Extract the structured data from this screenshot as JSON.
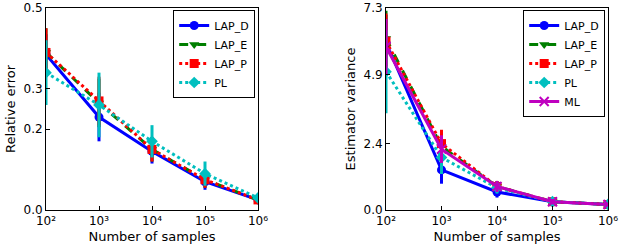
{
  "chart_data": [
    {
      "type": "line",
      "x_label": "Number of samples",
      "y_label": "Relative error",
      "x": [
        100,
        1000,
        10000,
        100000,
        1000000
      ],
      "log": "x",
      "xlim": [
        100,
        1000000
      ],
      "xticks": [
        {
          "value": 100,
          "label": "10²"
        },
        {
          "value": 1000,
          "label": "10³"
        },
        {
          "value": 10000,
          "label": "10⁴"
        },
        {
          "value": 100000,
          "label": "10⁵"
        },
        {
          "value": 1000000,
          "label": "10⁶"
        }
      ],
      "ylim": [
        0,
        0.5
      ],
      "yticks": [
        {
          "value": 0,
          "label": "0.0"
        },
        {
          "value": 0.2,
          "label": "0.2"
        },
        {
          "value": 0.3,
          "label": "0.3"
        },
        {
          "value": 0.5,
          "label": "0.5"
        }
      ],
      "grid": false,
      "legend": "upper right",
      "series": [
        {
          "name": "LAP_D",
          "color": "#0000ff",
          "marker": "circle",
          "line_style": "solid",
          "values": [
            0.385,
            0.23,
            0.145,
            0.07,
            0.025
          ],
          "error": [
            0.05,
            0.06,
            0.03,
            0.02,
            0.01
          ]
        },
        {
          "name": "LAP_E",
          "color": "#007f00",
          "marker": "triangle-down",
          "line_style": "dashed",
          "values": [
            0.39,
            0.265,
            0.15,
            0.075,
            0.025
          ],
          "error": [
            0.06,
            0.06,
            0.03,
            0.02,
            0.01
          ]
        },
        {
          "name": "LAP_P",
          "color": "#ff0000",
          "marker": "square",
          "line_style": "dotted",
          "values": [
            0.39,
            0.27,
            0.15,
            0.075,
            0.025
          ],
          "error": [
            0.06,
            0.06,
            0.03,
            0.02,
            0.01
          ]
        },
        {
          "name": "PL",
          "color": "#00bfbf",
          "marker": "diamond",
          "line_style": "dotted",
          "values": [
            0.34,
            0.26,
            0.17,
            0.09,
            0.03
          ],
          "error": [
            0.08,
            0.08,
            0.04,
            0.03,
            0.01
          ]
        }
      ]
    },
    {
      "type": "line",
      "x_label": "Number of samples",
      "y_label": "Estimator variance",
      "x": [
        100,
        1000,
        10000,
        100000,
        1000000
      ],
      "log": "x",
      "xlim": [
        100,
        1000000
      ],
      "xticks": [
        {
          "value": 100,
          "label": "10²"
        },
        {
          "value": 1000,
          "label": "10³"
        },
        {
          "value": 10000,
          "label": "10⁴"
        },
        {
          "value": 100000,
          "label": "10⁵"
        },
        {
          "value": 1000000,
          "label": "10⁶"
        }
      ],
      "ylim": [
        0,
        7.3
      ],
      "yticks": [
        {
          "value": 0,
          "label": "0.0"
        },
        2.4,
        4.9,
        7.3
      ],
      "grid": false,
      "legend": "upper right",
      "series": [
        {
          "name": "LAP_D",
          "color": "#0000ff",
          "marker": "circle",
          "line_style": "solid",
          "values": [
            6.05,
            1.45,
            0.65,
            0.3,
            0.2
          ],
          "error": [
            1.0,
            0.5,
            0.2,
            0.1,
            0.05
          ]
        },
        {
          "name": "LAP_E",
          "color": "#007f00",
          "marker": "triangle-down",
          "line_style": "dashed",
          "values": [
            6.2,
            2.3,
            0.85,
            0.3,
            0.2
          ],
          "error": [
            1.0,
            0.5,
            0.2,
            0.1,
            0.05
          ]
        },
        {
          "name": "LAP_P",
          "color": "#ff0000",
          "marker": "square",
          "line_style": "dotted",
          "values": [
            6.1,
            2.4,
            0.85,
            0.3,
            0.2
          ],
          "error": [
            1.0,
            0.5,
            0.2,
            0.1,
            0.05
          ]
        },
        {
          "name": "PL",
          "color": "#00bfbf",
          "marker": "diamond",
          "line_style": "dotted",
          "values": [
            5.0,
            1.9,
            0.8,
            0.3,
            0.2
          ],
          "error": [
            1.5,
            0.6,
            0.2,
            0.1,
            0.05
          ]
        },
        {
          "name": "ML",
          "color": "#bf00bf",
          "marker": "x",
          "line_style": "solid",
          "values": [
            5.9,
            2.2,
            0.85,
            0.3,
            0.2
          ],
          "error": [
            1.0,
            0.5,
            0.2,
            0.1,
            0.05
          ]
        }
      ]
    }
  ]
}
